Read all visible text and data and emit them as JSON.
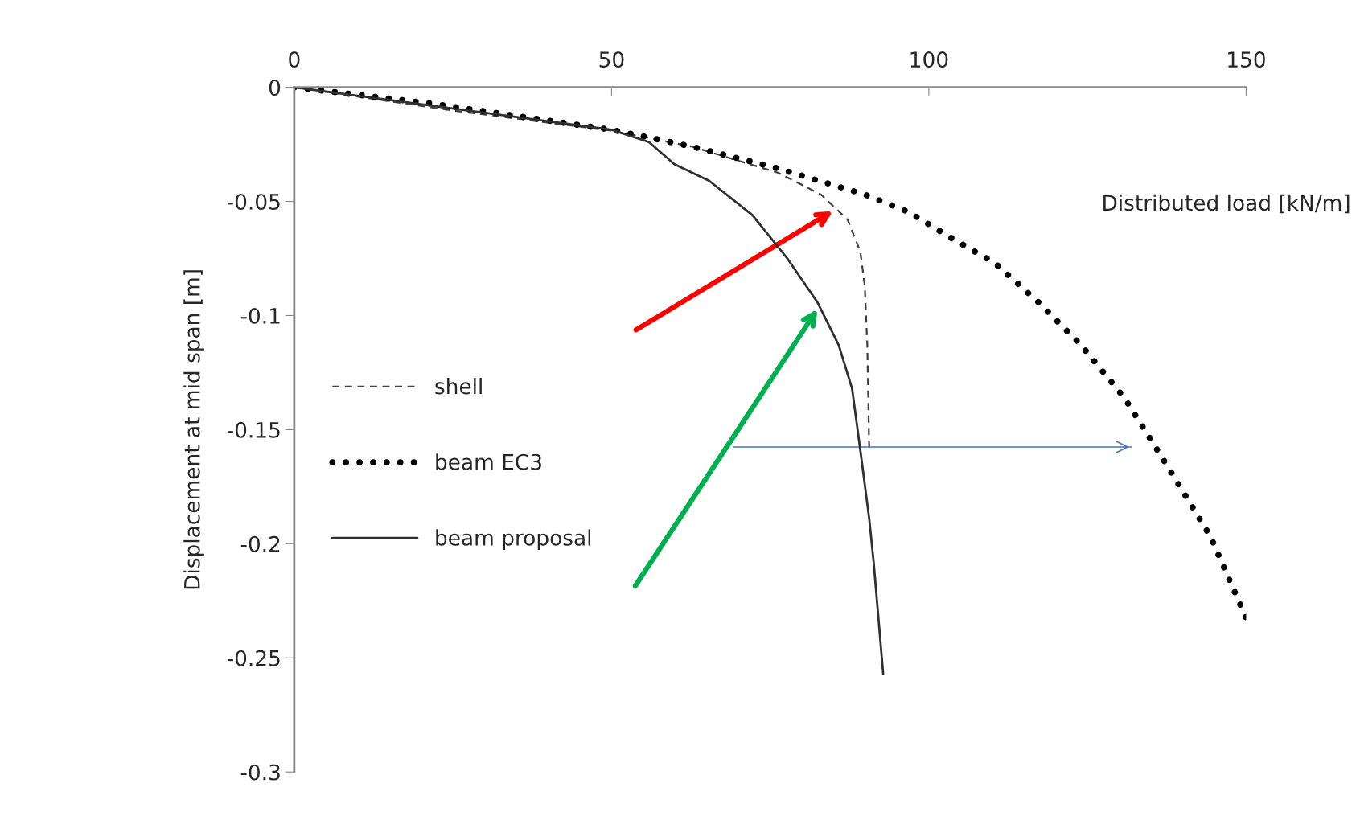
{
  "chart_data": {
    "type": "line",
    "xlabel": "Distributed load [kN/m]",
    "ylabel": "Displacement at mid span [m]",
    "xlim": [
      0,
      150
    ],
    "xticks": [
      0,
      50,
      100,
      150
    ],
    "ylim": [
      -0.3,
      0
    ],
    "yticks": [
      0,
      -0.05,
      -0.1,
      -0.15,
      -0.2,
      -0.25,
      -0.3
    ],
    "grid": false,
    "legend": "left",
    "marker": "none",
    "series": [
      {
        "name": "shell",
        "color": "#404040",
        "line_style": "dashed",
        "x": [
          0,
          24.5,
          50,
          62.7,
          76.3,
          83,
          87.2,
          89.2,
          89.9,
          90.3,
          90.6
        ],
        "values": [
          0,
          -0.01,
          -0.019,
          -0.026,
          -0.0375,
          -0.047,
          -0.058,
          -0.072,
          -0.087,
          -0.113,
          -0.159
        ]
      },
      {
        "name": "beam EC3",
        "color": "#000000",
        "line_style": "dotted",
        "x": [
          0,
          21.8,
          50,
          62.7,
          76.3,
          89.9,
          96.7,
          103.5,
          110.4,
          117.2,
          124,
          130.8,
          137.6,
          144.4,
          150
        ],
        "values": [
          0,
          -0.0072,
          -0.0186,
          -0.026,
          -0.0356,
          -0.047,
          -0.0545,
          -0.066,
          -0.077,
          -0.094,
          -0.113,
          -0.136,
          -0.166,
          -0.197,
          -0.2326
        ]
      },
      {
        "color": "#4472c4",
        "line_style": "solid",
        "x": [
          69.2,
          131.9
        ],
        "values": [
          -0.1576,
          -0.1576
        ]
      },
      {
        "name": "beam proposal",
        "color": "#303030",
        "line_style": "solid",
        "x": [
          0,
          50,
          55.9,
          59.9,
          65.4,
          72.2,
          77.7,
          82.4,
          85.8,
          87.9,
          89.2,
          90.6,
          91.3,
          92.1,
          92.8
        ],
        "values": [
          0,
          -0.0186,
          -0.024,
          -0.0337,
          -0.041,
          -0.056,
          -0.075,
          -0.094,
          -0.113,
          -0.132,
          -0.159,
          -0.189,
          -0.208,
          -0.234,
          -0.257
        ]
      }
    ]
  }
}
